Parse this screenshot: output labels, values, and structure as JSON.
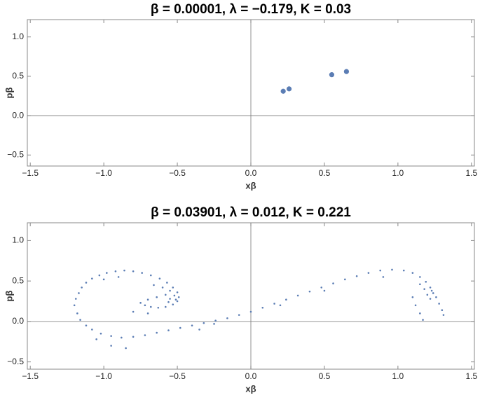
{
  "chart_data": [
    {
      "type": "scatter",
      "title": "β = 0.00001,  λ = −0.179,  K = 0.03",
      "xlabel": "xβ",
      "ylabel": "pβ",
      "color": "#5b7db4",
      "x": [
        0.22,
        0.26,
        0.55,
        0.65
      ],
      "values": [
        0.31,
        0.34,
        0.52,
        0.56
      ],
      "xlim": [
        -1.52,
        1.52
      ],
      "ylim": [
        -0.64,
        1.22
      ],
      "xticks": [
        {
          "value": -1.5,
          "label": "−1.5"
        },
        {
          "value": -1,
          "label": "−1.0"
        },
        {
          "value": -0.5,
          "label": "−0.5"
        },
        {
          "value": 0,
          "label": "0.0"
        },
        0.5,
        {
          "value": 1,
          "label": "1.0"
        },
        1.5
      ],
      "yticks": [
        {
          "value": -0.5,
          "label": "−0.5"
        },
        {
          "value": 0,
          "label": "0.0"
        },
        0.5,
        {
          "value": 1,
          "label": "1.0"
        }
      ]
    },
    {
      "type": "scatter",
      "title": "β = 0.03901,  λ = 0.012,  K = 0.221",
      "xlabel": "xβ",
      "ylabel": "pβ",
      "color": "#5b7db4",
      "x": [
        -1.2,
        -1.19,
        -1.17,
        -1.15,
        -1.12,
        -1.08,
        -1.03,
        -0.98,
        -0.92,
        -0.86,
        -0.8,
        -0.74,
        -0.68,
        -0.62,
        -0.57,
        -0.53,
        -0.5,
        -0.49,
        -0.5,
        -0.53,
        -0.58,
        -0.63,
        -0.68,
        -0.72,
        -0.75,
        -0.7,
        -0.64,
        -0.58,
        -0.55,
        -0.6,
        -0.66,
        -0.55,
        -0.52,
        -0.56,
        -0.51,
        -1.18,
        -1.16,
        -1.12,
        -1.08,
        -1.02,
        -0.95,
        -0.88,
        -0.8,
        -0.72,
        -0.64,
        -0.56,
        -0.48,
        -0.4,
        -0.32,
        -0.24,
        -0.16,
        -0.08,
        0,
        0.08,
        0.16,
        0.24,
        0.32,
        0.4,
        0.48,
        0.56,
        0.64,
        0.72,
        0.8,
        0.88,
        0.96,
        1.04,
        1.1,
        1.15,
        1.19,
        1.22,
        1.24,
        1.22,
        1.2,
        1.23,
        1.26,
        1.28,
        1.3,
        1.31,
        1.18,
        1.15,
        1.1,
        1.12,
        1.15,
        1.17,
        -0.95,
        -0.85,
        -1.05,
        -0.35,
        0.5,
        0.9,
        -0.7,
        -0.8,
        -0.25,
        0.2,
        -0.9,
        -1.0
      ],
      "values": [
        0.2,
        0.28,
        0.35,
        0.42,
        0.48,
        0.53,
        0.57,
        0.6,
        0.62,
        0.63,
        0.62,
        0.6,
        0.57,
        0.53,
        0.48,
        0.42,
        0.36,
        0.3,
        0.25,
        0.21,
        0.18,
        0.17,
        0.18,
        0.2,
        0.23,
        0.27,
        0.3,
        0.33,
        0.38,
        0.42,
        0.45,
        0.28,
        0.32,
        0.24,
        0.27,
        0.1,
        0.02,
        -0.05,
        -0.1,
        -0.15,
        -0.18,
        -0.2,
        -0.19,
        -0.17,
        -0.14,
        -0.11,
        -0.08,
        -0.05,
        -0.02,
        0.01,
        0.04,
        0.08,
        0.12,
        0.17,
        0.22,
        0.27,
        0.32,
        0.37,
        0.42,
        0.47,
        0.52,
        0.56,
        0.6,
        0.63,
        0.64,
        0.63,
        0.6,
        0.55,
        0.49,
        0.42,
        0.35,
        0.28,
        0.33,
        0.38,
        0.3,
        0.22,
        0.14,
        0.08,
        0.4,
        0.46,
        0.3,
        0.2,
        0.1,
        0.02,
        -0.3,
        -0.33,
        -0.22,
        -0.1,
        0.38,
        0.55,
        0.1,
        0.12,
        -0.03,
        0.2,
        0.55,
        0.52
      ],
      "xlim": [
        -1.52,
        1.52
      ],
      "ylim": [
        -0.59,
        1.22
      ],
      "xticks": [
        {
          "value": -1.5,
          "label": "−1.5"
        },
        {
          "value": -1,
          "label": "−1.0"
        },
        {
          "value": -0.5,
          "label": "−0.5"
        },
        {
          "value": 0,
          "label": "0.0"
        },
        0.5,
        {
          "value": 1,
          "label": "1.0"
        },
        1.5
      ],
      "yticks": [
        {
          "value": -0.5,
          "label": "−0.5"
        },
        {
          "value": 0,
          "label": "0.0"
        },
        0.5,
        {
          "value": 1,
          "label": "1.0"
        }
      ]
    }
  ]
}
